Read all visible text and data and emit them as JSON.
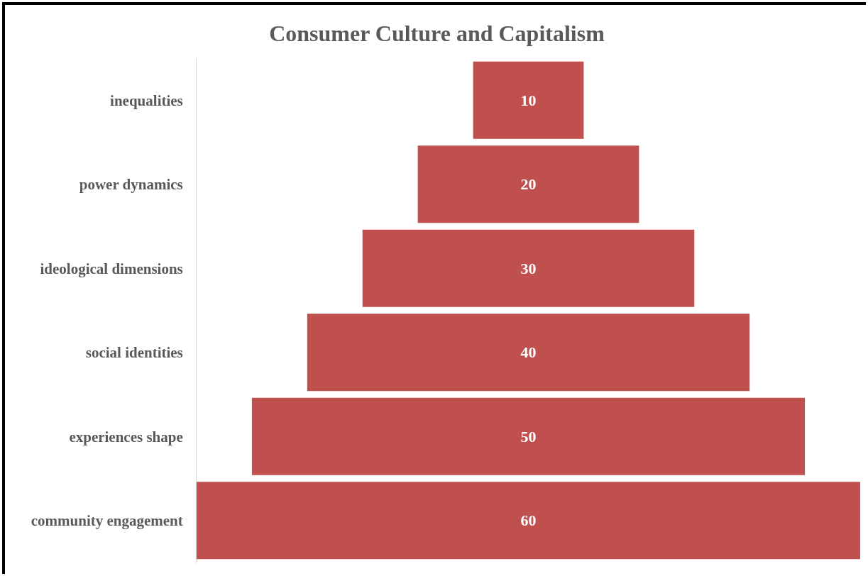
{
  "chart_data": {
    "type": "other",
    "title": "Consumer Culture and Capitalism",
    "categories": [
      "inequalities",
      "power dynamics",
      "ideological dimensions",
      "social identities",
      "experiences shape",
      "community engagement"
    ],
    "values": [
      10,
      20,
      30,
      40,
      50,
      60
    ],
    "color": "#c0504d",
    "data_labels": true,
    "legend": false
  }
}
